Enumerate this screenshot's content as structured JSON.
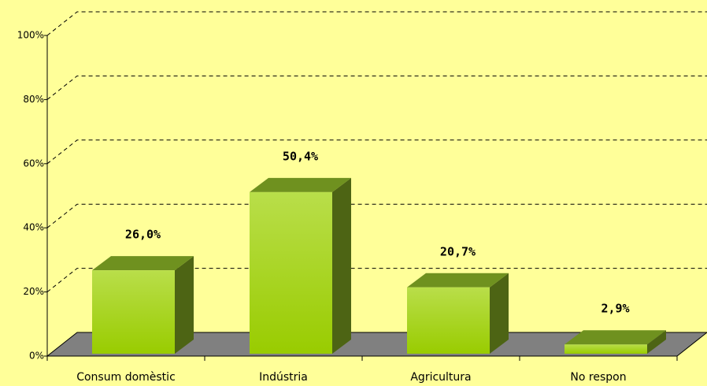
{
  "chart_data": {
    "type": "bar3d",
    "categories": [
      "Consum domèstic",
      "Indústria",
      "Agricultura",
      "No respon"
    ],
    "values": [
      26.0,
      50.4,
      20.7,
      2.9
    ],
    "value_labels": [
      "26,0%",
      "50,4%",
      "20,7%",
      "2,9%"
    ],
    "color": "#99cc00",
    "ylim": [
      0,
      100
    ],
    "yticks": [
      {
        "value": 0,
        "label": "0%"
      },
      {
        "value": 20,
        "label": "20%"
      },
      {
        "value": 40,
        "label": "40%"
      },
      {
        "value": 60,
        "label": "60%"
      },
      {
        "value": 80,
        "label": "80%"
      },
      {
        "value": 100,
        "label": "100%"
      }
    ],
    "grid": true
  }
}
